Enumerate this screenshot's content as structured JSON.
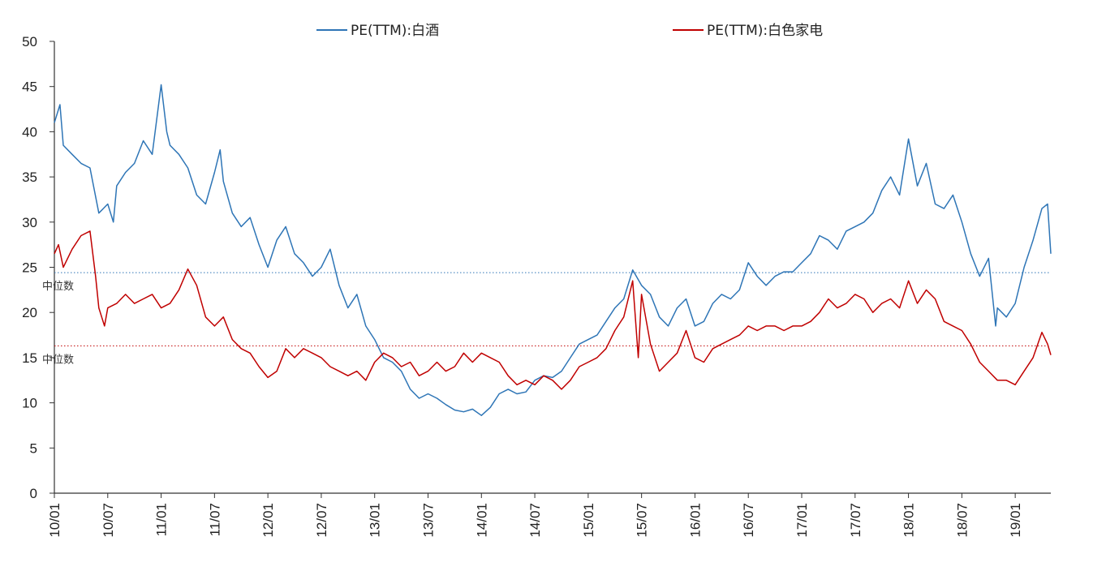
{
  "chart_data": {
    "type": "line",
    "title": "",
    "xlabel": "",
    "ylabel": "",
    "ylim": [
      0,
      50
    ],
    "yticks": [
      0,
      5,
      10,
      15,
      20,
      25,
      30,
      35,
      40,
      45,
      50
    ],
    "xlim": [
      "2010-01",
      "2019-05"
    ],
    "xticks": [
      "10/01",
      "10/07",
      "11/01",
      "11/07",
      "12/01",
      "12/07",
      "13/01",
      "13/07",
      "14/01",
      "14/07",
      "15/01",
      "15/07",
      "16/01",
      "16/07",
      "17/01",
      "17/07",
      "18/01",
      "18/07",
      "19/01"
    ],
    "grid": false,
    "legend_position": "top",
    "series": [
      {
        "name": "PE(TTM):白酒",
        "color": "#2e75b6",
        "median": 24.4,
        "median_label": "中位数",
        "points": [
          [
            "2010-01",
            41.0
          ],
          [
            "2010-01-20",
            43.0
          ],
          [
            "2010-02",
            38.5
          ],
          [
            "2010-03",
            37.5
          ],
          [
            "2010-04",
            36.5
          ],
          [
            "2010-05",
            36.0
          ],
          [
            "2010-06",
            31.0
          ],
          [
            "2010-07",
            32.0
          ],
          [
            "2010-07-20",
            30.0
          ],
          [
            "2010-08",
            34.0
          ],
          [
            "2010-09",
            35.5
          ],
          [
            "2010-10",
            36.5
          ],
          [
            "2010-11",
            39.0
          ],
          [
            "2010-12",
            37.5
          ],
          [
            "2011-01",
            45.2
          ],
          [
            "2011-01-20",
            40.0
          ],
          [
            "2011-02",
            38.5
          ],
          [
            "2011-03",
            37.5
          ],
          [
            "2011-04",
            36.0
          ],
          [
            "2011-05",
            33.0
          ],
          [
            "2011-06",
            32.0
          ],
          [
            "2011-07",
            35.5
          ],
          [
            "2011-07-20",
            38.0
          ],
          [
            "2011-08",
            34.5
          ],
          [
            "2011-09",
            31.0
          ],
          [
            "2011-10",
            29.5
          ],
          [
            "2011-11",
            30.5
          ],
          [
            "2011-12",
            27.5
          ],
          [
            "2012-01",
            25.0
          ],
          [
            "2012-02",
            28.0
          ],
          [
            "2012-03",
            29.5
          ],
          [
            "2012-04",
            26.5
          ],
          [
            "2012-05",
            25.5
          ],
          [
            "2012-06",
            24.0
          ],
          [
            "2012-07",
            25.0
          ],
          [
            "2012-08",
            27.0
          ],
          [
            "2012-09",
            23.0
          ],
          [
            "2012-10",
            20.5
          ],
          [
            "2012-11",
            22.0
          ],
          [
            "2012-12",
            18.5
          ],
          [
            "2013-01",
            17.0
          ],
          [
            "2013-02",
            15.0
          ],
          [
            "2013-03",
            14.5
          ],
          [
            "2013-04",
            13.5
          ],
          [
            "2013-05",
            11.5
          ],
          [
            "2013-06",
            10.5
          ],
          [
            "2013-07",
            11.0
          ],
          [
            "2013-08",
            10.5
          ],
          [
            "2013-09",
            9.8
          ],
          [
            "2013-10",
            9.2
          ],
          [
            "2013-11",
            9.0
          ],
          [
            "2013-12",
            9.3
          ],
          [
            "2014-01",
            8.6
          ],
          [
            "2014-02",
            9.5
          ],
          [
            "2014-03",
            11.0
          ],
          [
            "2014-04",
            11.5
          ],
          [
            "2014-05",
            11.0
          ],
          [
            "2014-06",
            11.2
          ],
          [
            "2014-07",
            12.5
          ],
          [
            "2014-08",
            13.0
          ],
          [
            "2014-09",
            12.8
          ],
          [
            "2014-10",
            13.5
          ],
          [
            "2014-11",
            15.0
          ],
          [
            "2014-12",
            16.5
          ],
          [
            "2015-01",
            17.0
          ],
          [
            "2015-02",
            17.5
          ],
          [
            "2015-03",
            19.0
          ],
          [
            "2015-04",
            20.5
          ],
          [
            "2015-05",
            21.5
          ],
          [
            "2015-06",
            24.7
          ],
          [
            "2015-07",
            23.0
          ],
          [
            "2015-08",
            22.0
          ],
          [
            "2015-09",
            19.5
          ],
          [
            "2015-10",
            18.5
          ],
          [
            "2015-11",
            20.5
          ],
          [
            "2015-12",
            21.5
          ],
          [
            "2016-01",
            18.5
          ],
          [
            "2016-02",
            19.0
          ],
          [
            "2016-03",
            21.0
          ],
          [
            "2016-04",
            22.0
          ],
          [
            "2016-05",
            21.5
          ],
          [
            "2016-06",
            22.5
          ],
          [
            "2016-07",
            25.5
          ],
          [
            "2016-08",
            24.0
          ],
          [
            "2016-09",
            23.0
          ],
          [
            "2016-10",
            24.0
          ],
          [
            "2016-11",
            24.5
          ],
          [
            "2016-12",
            24.5
          ],
          [
            "2017-01",
            25.5
          ],
          [
            "2017-02",
            26.5
          ],
          [
            "2017-03",
            28.5
          ],
          [
            "2017-04",
            28.0
          ],
          [
            "2017-05",
            27.0
          ],
          [
            "2017-06",
            29.0
          ],
          [
            "2017-07",
            29.5
          ],
          [
            "2017-08",
            30.0
          ],
          [
            "2017-09",
            31.0
          ],
          [
            "2017-10",
            33.5
          ],
          [
            "2017-11",
            35.0
          ],
          [
            "2017-12",
            33.0
          ],
          [
            "2018-01",
            39.2
          ],
          [
            "2018-02",
            34.0
          ],
          [
            "2018-03",
            36.5
          ],
          [
            "2018-04",
            32.0
          ],
          [
            "2018-05",
            31.5
          ],
          [
            "2018-06",
            33.0
          ],
          [
            "2018-07",
            30.0
          ],
          [
            "2018-08",
            26.5
          ],
          [
            "2018-09",
            24.0
          ],
          [
            "2018-10",
            26.0
          ],
          [
            "2018-10-25",
            18.5
          ],
          [
            "2018-11",
            20.5
          ],
          [
            "2018-12",
            19.5
          ],
          [
            "2019-01",
            21.0
          ],
          [
            "2019-02",
            25.0
          ],
          [
            "2019-03",
            28.0
          ],
          [
            "2019-04",
            31.5
          ],
          [
            "2019-04-20",
            32.0
          ],
          [
            "2019-05",
            26.5
          ]
        ]
      },
      {
        "name": "PE(TTM):白色家电",
        "color": "#c00000",
        "median": 16.3,
        "median_label": "中位数",
        "points": [
          [
            "2010-01",
            26.5
          ],
          [
            "2010-01-15",
            27.5
          ],
          [
            "2010-02",
            25.0
          ],
          [
            "2010-03",
            27.0
          ],
          [
            "2010-04",
            28.5
          ],
          [
            "2010-05",
            29.0
          ],
          [
            "2010-05-20",
            24.0
          ],
          [
            "2010-06",
            20.5
          ],
          [
            "2010-06-20",
            18.5
          ],
          [
            "2010-07",
            20.5
          ],
          [
            "2010-08",
            21.0
          ],
          [
            "2010-09",
            22.0
          ],
          [
            "2010-10",
            21.0
          ],
          [
            "2010-11",
            21.5
          ],
          [
            "2010-12",
            22.0
          ],
          [
            "2011-01",
            20.5
          ],
          [
            "2011-02",
            21.0
          ],
          [
            "2011-03",
            22.5
          ],
          [
            "2011-04",
            24.8
          ],
          [
            "2011-05",
            23.0
          ],
          [
            "2011-06",
            19.5
          ],
          [
            "2011-07",
            18.5
          ],
          [
            "2011-08",
            19.5
          ],
          [
            "2011-09",
            17.0
          ],
          [
            "2011-10",
            16.0
          ],
          [
            "2011-11",
            15.5
          ],
          [
            "2011-12",
            14.0
          ],
          [
            "2012-01",
            12.8
          ],
          [
            "2012-02",
            13.5
          ],
          [
            "2012-03",
            16.0
          ],
          [
            "2012-04",
            15.0
          ],
          [
            "2012-05",
            16.0
          ],
          [
            "2012-06",
            15.5
          ],
          [
            "2012-07",
            15.0
          ],
          [
            "2012-08",
            14.0
          ],
          [
            "2012-09",
            13.5
          ],
          [
            "2012-10",
            13.0
          ],
          [
            "2012-11",
            13.5
          ],
          [
            "2012-12",
            12.5
          ],
          [
            "2013-01",
            14.5
          ],
          [
            "2013-02",
            15.5
          ],
          [
            "2013-03",
            15.0
          ],
          [
            "2013-04",
            14.0
          ],
          [
            "2013-05",
            14.5
          ],
          [
            "2013-06",
            13.0
          ],
          [
            "2013-07",
            13.5
          ],
          [
            "2013-08",
            14.5
          ],
          [
            "2013-09",
            13.5
          ],
          [
            "2013-10",
            14.0
          ],
          [
            "2013-11",
            15.5
          ],
          [
            "2013-12",
            14.5
          ],
          [
            "2014-01",
            15.5
          ],
          [
            "2014-02",
            15.0
          ],
          [
            "2014-03",
            14.5
          ],
          [
            "2014-04",
            13.0
          ],
          [
            "2014-05",
            12.0
          ],
          [
            "2014-06",
            12.5
          ],
          [
            "2014-07",
            12.0
          ],
          [
            "2014-08",
            13.0
          ],
          [
            "2014-09",
            12.5
          ],
          [
            "2014-10",
            11.5
          ],
          [
            "2014-11",
            12.5
          ],
          [
            "2014-12",
            14.0
          ],
          [
            "2015-01",
            14.5
          ],
          [
            "2015-02",
            15.0
          ],
          [
            "2015-03",
            16.0
          ],
          [
            "2015-04",
            18.0
          ],
          [
            "2015-05",
            19.5
          ],
          [
            "2015-06",
            23.5
          ],
          [
            "2015-06-20",
            15.0
          ],
          [
            "2015-07",
            22.0
          ],
          [
            "2015-08",
            16.5
          ],
          [
            "2015-09",
            13.5
          ],
          [
            "2015-10",
            14.5
          ],
          [
            "2015-11",
            15.5
          ],
          [
            "2015-12",
            18.0
          ],
          [
            "2016-01",
            15.0
          ],
          [
            "2016-02",
            14.5
          ],
          [
            "2016-03",
            16.0
          ],
          [
            "2016-04",
            16.5
          ],
          [
            "2016-05",
            17.0
          ],
          [
            "2016-06",
            17.5
          ],
          [
            "2016-07",
            18.5
          ],
          [
            "2016-08",
            18.0
          ],
          [
            "2016-09",
            18.5
          ],
          [
            "2016-10",
            18.5
          ],
          [
            "2016-11",
            18.0
          ],
          [
            "2016-12",
            18.5
          ],
          [
            "2017-01",
            18.5
          ],
          [
            "2017-02",
            19.0
          ],
          [
            "2017-03",
            20.0
          ],
          [
            "2017-04",
            21.5
          ],
          [
            "2017-05",
            20.5
          ],
          [
            "2017-06",
            21.0
          ],
          [
            "2017-07",
            22.0
          ],
          [
            "2017-08",
            21.5
          ],
          [
            "2017-09",
            20.0
          ],
          [
            "2017-10",
            21.0
          ],
          [
            "2017-11",
            21.5
          ],
          [
            "2017-12",
            20.5
          ],
          [
            "2018-01",
            23.5
          ],
          [
            "2018-02",
            21.0
          ],
          [
            "2018-03",
            22.5
          ],
          [
            "2018-04",
            21.5
          ],
          [
            "2018-05",
            19.0
          ],
          [
            "2018-06",
            18.5
          ],
          [
            "2018-07",
            18.0
          ],
          [
            "2018-08",
            16.5
          ],
          [
            "2018-09",
            14.5
          ],
          [
            "2018-10",
            13.5
          ],
          [
            "2018-11",
            12.5
          ],
          [
            "2018-12",
            12.5
          ],
          [
            "2019-01",
            12.0
          ],
          [
            "2019-02",
            13.5
          ],
          [
            "2019-03",
            15.0
          ],
          [
            "2019-04",
            17.8
          ],
          [
            "2019-04-20",
            16.5
          ],
          [
            "2019-05",
            15.3
          ]
        ]
      }
    ]
  }
}
